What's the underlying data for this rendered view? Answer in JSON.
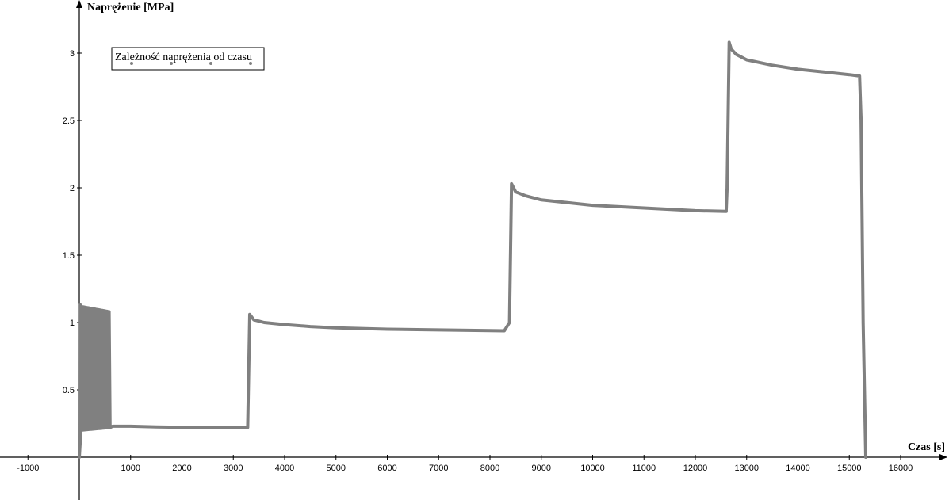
{
  "chart_data": {
    "type": "line",
    "xlabel": "Czas [s]",
    "ylabel": "Naprężenie [MPa]",
    "xlim": [
      -1500,
      16900
    ],
    "ylim": [
      -0.32,
      3.55
    ],
    "x_ticks": [
      -1000,
      1000,
      2000,
      3000,
      4000,
      5000,
      6000,
      7000,
      8000,
      9000,
      10000,
      11000,
      12000,
      13000,
      14000,
      15000,
      16000
    ],
    "y_ticks": [
      0.5,
      1,
      1.5,
      2,
      2.5,
      3
    ],
    "tick_labels_x": [
      "-1000",
      "1000",
      "2000",
      "3000",
      "4000",
      "5000",
      "6000",
      "7000",
      "8000",
      "9000",
      "10000",
      "11000",
      "12000",
      "13000",
      "14000",
      "15000",
      "16000"
    ],
    "tick_labels_y": [
      "0.5",
      "1",
      "1.5",
      "2",
      "2.5",
      "3"
    ],
    "legend": {
      "label": "Zależność naprężenia od czasu",
      "placement": "top-left"
    },
    "grid": false,
    "line_color": "#808080",
    "series": [
      {
        "name": "Zależność naprężenia od czasu",
        "oscillation": {
          "t_start": 20,
          "t_end": 580,
          "cycles": 30,
          "high": 1.12,
          "low": 0.2
        },
        "points": [
          [
            0,
            0.0
          ],
          [
            15,
            0.1
          ],
          [
            20,
            1.13
          ],
          [
            580,
            1.08
          ],
          [
            600,
            0.22
          ],
          [
            650,
            0.23
          ],
          [
            1000,
            0.23
          ],
          [
            1500,
            0.225
          ],
          [
            2000,
            0.222
          ],
          [
            3000,
            0.222
          ],
          [
            3280,
            0.222
          ],
          [
            3320,
            1.06
          ],
          [
            3400,
            1.02
          ],
          [
            3600,
            1.0
          ],
          [
            4000,
            0.985
          ],
          [
            4500,
            0.97
          ],
          [
            5000,
            0.96
          ],
          [
            6000,
            0.95
          ],
          [
            7000,
            0.945
          ],
          [
            8000,
            0.94
          ],
          [
            8280,
            0.938
          ],
          [
            8380,
            1.0
          ],
          [
            8420,
            2.03
          ],
          [
            8500,
            1.97
          ],
          [
            8700,
            1.94
          ],
          [
            9000,
            1.91
          ],
          [
            10000,
            1.87
          ],
          [
            11000,
            1.85
          ],
          [
            12000,
            1.83
          ],
          [
            12600,
            1.825
          ],
          [
            12620,
            2.0
          ],
          [
            12660,
            3.08
          ],
          [
            12700,
            3.03
          ],
          [
            12800,
            2.99
          ],
          [
            13000,
            2.95
          ],
          [
            13500,
            2.91
          ],
          [
            14000,
            2.88
          ],
          [
            14500,
            2.86
          ],
          [
            15000,
            2.84
          ],
          [
            15200,
            2.83
          ],
          [
            15230,
            2.5
          ],
          [
            15270,
            1.0
          ],
          [
            15320,
            0.0
          ]
        ]
      }
    ]
  }
}
